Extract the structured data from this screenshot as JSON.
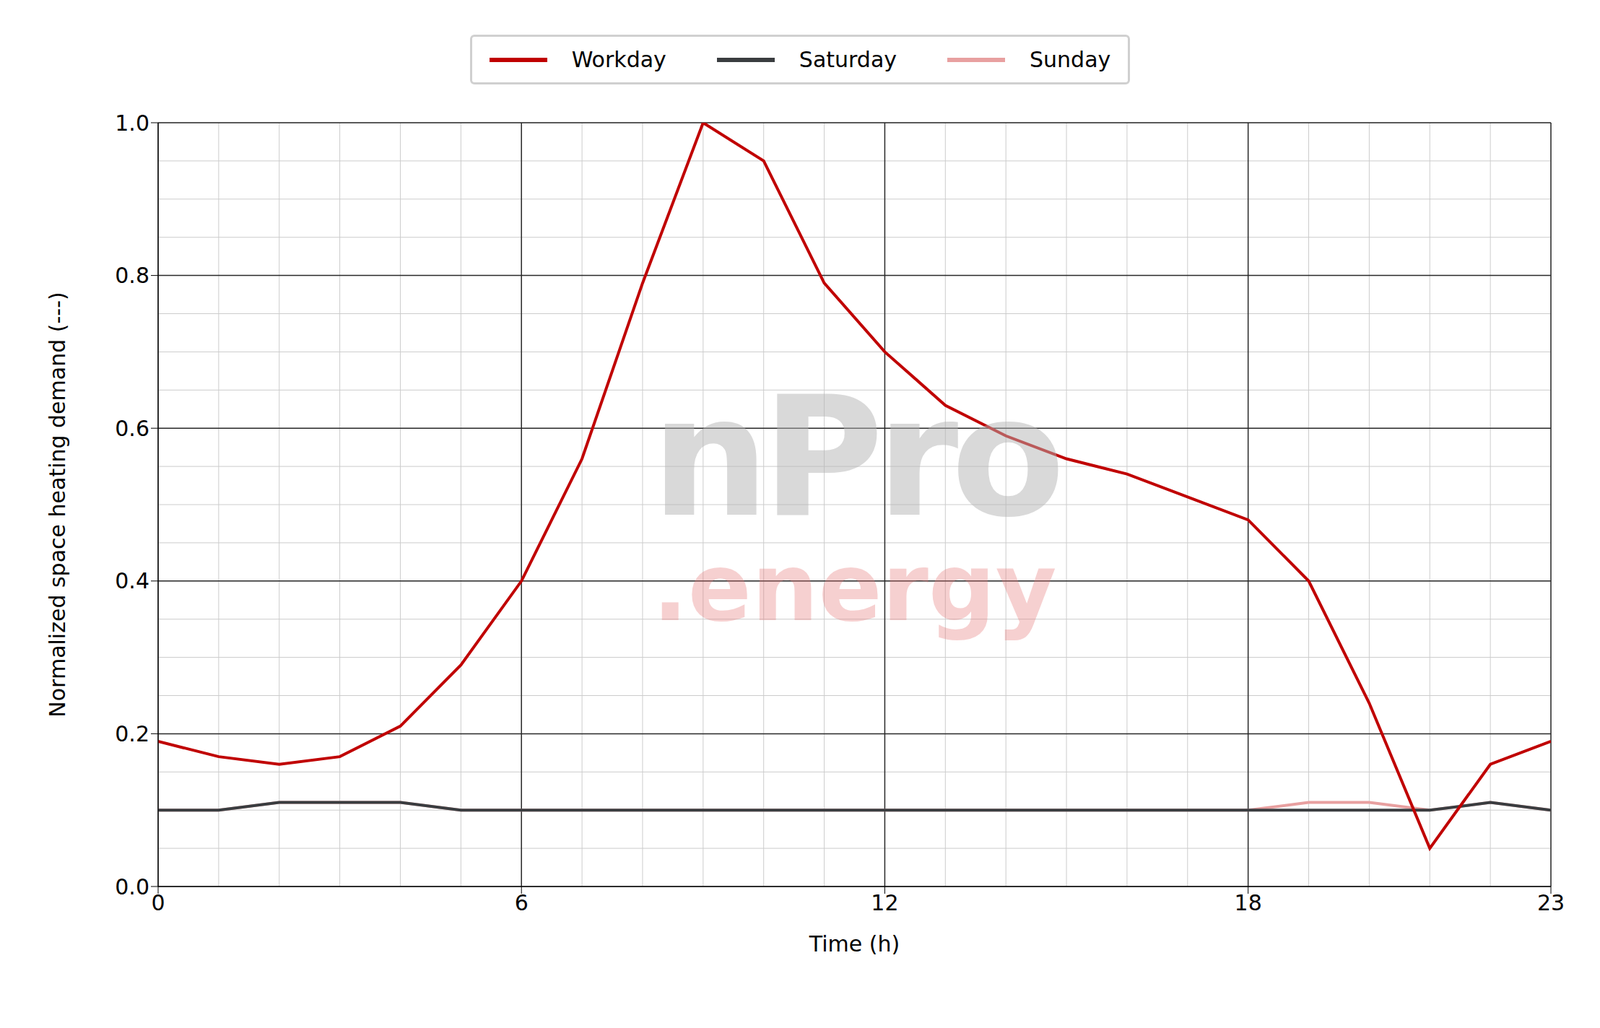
{
  "chart_data": {
    "type": "line",
    "x_label": "Time (h)",
    "y_label": "Normalized space heating demand (---)",
    "annotations": [
      "nPro",
      ".energy"
    ],
    "x": [
      0,
      1,
      2,
      3,
      4,
      5,
      6,
      7,
      8,
      9,
      10,
      11,
      12,
      13,
      14,
      15,
      16,
      17,
      18,
      19,
      20,
      21,
      22,
      23
    ],
    "series": [
      {
        "name": "Workday",
        "color": "#c00000",
        "values": [
          0.19,
          0.17,
          0.16,
          0.17,
          0.21,
          0.29,
          0.4,
          0.56,
          0.79,
          1.0,
          0.95,
          0.79,
          0.7,
          0.63,
          0.59,
          0.56,
          0.54,
          0.51,
          0.48,
          0.4,
          0.24,
          0.05,
          0.16,
          0.19
        ]
      },
      {
        "name": "Saturday",
        "color": "#3a3d40",
        "values": [
          0.1,
          0.1,
          0.11,
          0.11,
          0.11,
          0.1,
          0.1,
          0.1,
          0.1,
          0.1,
          0.1,
          0.1,
          0.1,
          0.1,
          0.1,
          0.1,
          0.1,
          0.1,
          0.1,
          0.1,
          0.1,
          0.1,
          0.11,
          0.1
        ]
      },
      {
        "name": "Sunday",
        "color": "#e8a0a0",
        "values": [
          0.1,
          0.1,
          0.11,
          0.11,
          0.11,
          0.1,
          0.1,
          0.1,
          0.1,
          0.1,
          0.1,
          0.1,
          0.1,
          0.1,
          0.1,
          0.1,
          0.1,
          0.1,
          0.1,
          0.11,
          0.11,
          0.1,
          0.11,
          0.1
        ]
      }
    ],
    "xlim": [
      0,
      23
    ],
    "xticks": [
      0,
      6,
      12,
      18,
      23
    ],
    "ylim": [
      0,
      1
    ],
    "yticks": [
      {
        "value": 0,
        "label": "0.0"
      },
      0.2,
      0.4,
      0.6,
      0.8,
      {
        "value": 1,
        "label": "1.0"
      }
    ],
    "grid": true,
    "legend": "top"
  }
}
